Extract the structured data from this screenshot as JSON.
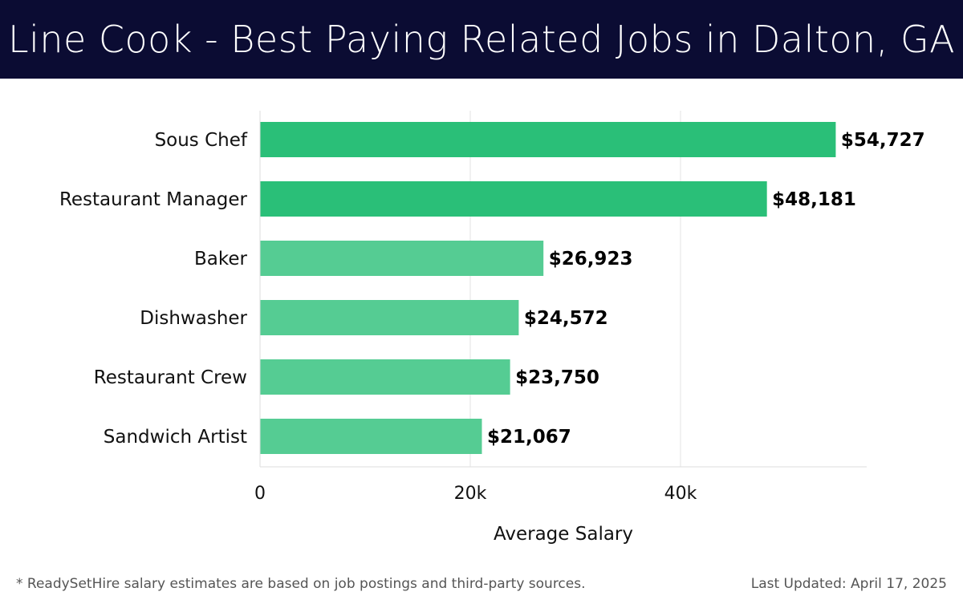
{
  "header": {
    "title": "Line Cook - Best Paying Related Jobs in Dalton, GA"
  },
  "chart_data": {
    "type": "bar",
    "orientation": "horizontal",
    "title": "Line Cook - Best Paying Related Jobs in Dalton, GA",
    "xlabel": "Average Salary",
    "ylabel": "",
    "categories": [
      "Sous Chef",
      "Restaurant Manager",
      "Baker",
      "Dishwasher",
      "Restaurant Crew",
      "Sandwich Artist"
    ],
    "values": [
      54727,
      48181,
      26923,
      24572,
      23750,
      21067
    ],
    "value_labels": [
      "$54,727",
      "$48,181",
      "$26,923",
      "$24,572",
      "$23,750",
      "$21,067"
    ],
    "xlim": [
      0,
      57500
    ],
    "xticks": [
      0,
      20000,
      40000
    ],
    "xtick_labels": [
      "0",
      "20k",
      "40k"
    ],
    "grid": true,
    "legend": "none",
    "colors": {
      "highlight": "#2abf78",
      "bar": "#55cc93",
      "title_bg": "#0b0c33",
      "gridline": "#e3e3e3"
    },
    "highlight_count": 2
  },
  "footer": {
    "note": "* ReadySetHire salary estimates are based on job postings and third-party sources.",
    "updated": "Last Updated: April 17, 2025"
  }
}
